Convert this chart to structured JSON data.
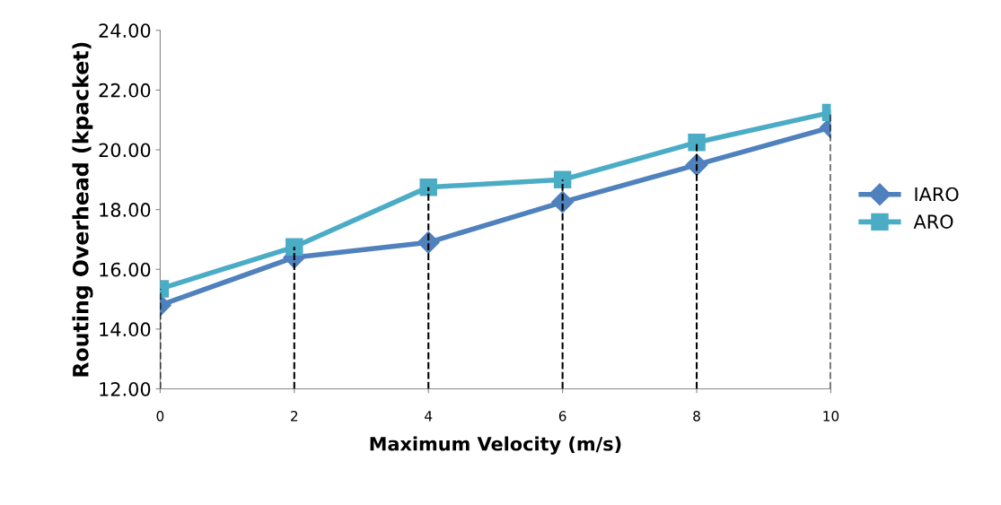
{
  "chart_data": {
    "type": "line",
    "xlabel": "Maximum Velocity (m/s)",
    "ylabel": "Routing Overhead (kpacket)",
    "x": [
      0,
      2,
      4,
      6,
      8,
      10
    ],
    "series": [
      {
        "name": "IARO",
        "color": "#4f81bd",
        "marker": "diamond",
        "values": [
          14.8,
          16.4,
          16.9,
          18.25,
          19.5,
          20.75
        ]
      },
      {
        "name": "ARO",
        "color": "#4bacc6",
        "marker": "square",
        "values": [
          15.35,
          16.75,
          18.75,
          19.0,
          20.25,
          21.25
        ]
      }
    ],
    "xlim": [
      0,
      10
    ],
    "xticks": [
      0,
      2,
      4,
      6,
      8,
      10
    ],
    "ylim": [
      12,
      24
    ],
    "yticks": [
      {
        "value": 12,
        "label": "12.00"
      },
      {
        "value": 14,
        "label": "14.00"
      },
      {
        "value": 16,
        "label": "16.00"
      },
      {
        "value": 18,
        "label": "18.00"
      },
      {
        "value": 20,
        "label": "20.00"
      },
      {
        "value": 22,
        "label": "22.00"
      },
      {
        "value": 24,
        "label": "24.00"
      }
    ],
    "ref_lines": [
      {
        "axis": "x",
        "value": 0,
        "color": "#000000",
        "line_style": "dashed"
      },
      {
        "axis": "x",
        "value": 2,
        "color": "#000000",
        "line_style": "dashed"
      },
      {
        "axis": "x",
        "value": 4,
        "color": "#000000",
        "line_style": "dashed"
      },
      {
        "axis": "x",
        "value": 6,
        "color": "#000000",
        "line_style": "dashed"
      },
      {
        "axis": "x",
        "value": 8,
        "color": "#000000",
        "line_style": "dashed"
      },
      {
        "axis": "x",
        "value": 10,
        "color": "#000000",
        "line_style": "dashed"
      }
    ],
    "grid": false,
    "legend": "right",
    "line_style": "solid"
  }
}
